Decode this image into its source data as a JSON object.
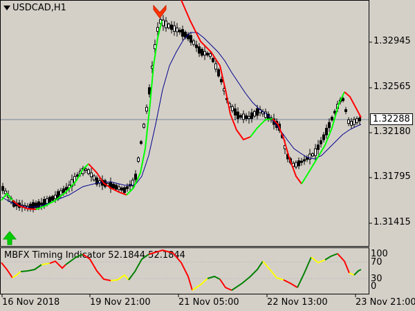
{
  "main_chart": {
    "symbol_label": "USDCAD,H1",
    "current_price": "1.32288",
    "price_ticks": [
      "1.32945",
      "1.32565",
      "1.32180",
      "1.31795",
      "1.31415"
    ],
    "price_levels": [
      1.32945,
      1.32565,
      1.3218,
      1.31795,
      1.31415
    ],
    "price_min": 1.3122,
    "price_max": 1.334
  },
  "sub_chart": {
    "indicator_label": "MBFX Timing Indicator 52.1844 52.1844",
    "scale_ticks": [
      "100",
      "70",
      "30",
      "0"
    ],
    "scale_levels": [
      100,
      70,
      30,
      0
    ]
  },
  "time_axis": {
    "labels": [
      "16 Nov 2018",
      "19 Nov 21:00",
      "21 Nov 05:00",
      "22 Nov 13:00",
      "23 Nov 21:00"
    ]
  },
  "colors": {
    "bull_line": "#00ff00",
    "bear_line": "#ff0000",
    "ma_line": "#00008b",
    "timing_yellow": "#ffff00",
    "timing_green": "#008000",
    "timing_red": "#ff0000"
  },
  "signals": {
    "buy_arrow": "up-arrow-icon",
    "sell_arrow": "down-arrow-icon"
  }
}
